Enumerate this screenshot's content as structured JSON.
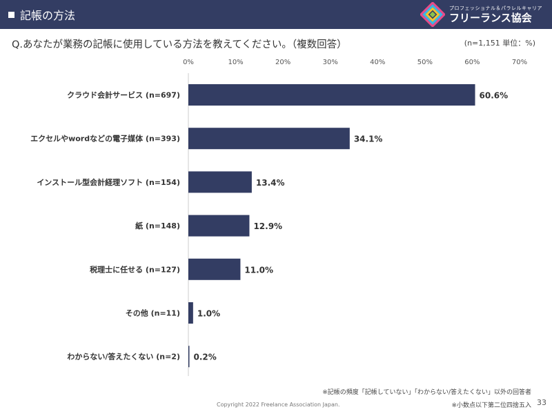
{
  "header": {
    "title": "記帳の方法"
  },
  "brand": {
    "tagline": "プロフェッショナル＆パラレルキャリア",
    "name": "フリーランス協会"
  },
  "question": "Q.あなたが業務の記帳に使用している方法を教えてください。（複数回答）",
  "note_top": "(n=1,151 単位：%)",
  "notes": {
    "frequency": "※記帳の頻度「記帳していない」「わからない/答えたくない」以外の回答者",
    "rounding": "※小数点以下第二位四捨五入"
  },
  "copyright": "Copyright 2022 Freelance Association Japan.",
  "page_number": "33",
  "colors": {
    "bar": "#333d63",
    "header": "#333d63"
  },
  "chart_data": {
    "type": "bar",
    "orientation": "horizontal",
    "categories": [
      "クラウド会計サービス (n=697)",
      "エクセルやwordなどの電子媒体 (n=393)",
      "インストール型会計経理ソフト (n=154)",
      "紙 (n=148)",
      "税理士に任せる (n=127)",
      "その他 (n=11)",
      "わからない/答えたくない (n=2)"
    ],
    "values": [
      60.6,
      34.1,
      13.4,
      12.9,
      11.0,
      1.0,
      0.2
    ],
    "value_labels": [
      "60.6%",
      "34.1%",
      "13.4%",
      "12.9%",
      "11.0%",
      "1.0%",
      "0.2%"
    ],
    "x_ticks": [
      "0%",
      "10%",
      "20%",
      "30%",
      "40%",
      "50%",
      "60%",
      "70%"
    ],
    "xlim": [
      0,
      70
    ],
    "grid": false,
    "legend": "none"
  }
}
